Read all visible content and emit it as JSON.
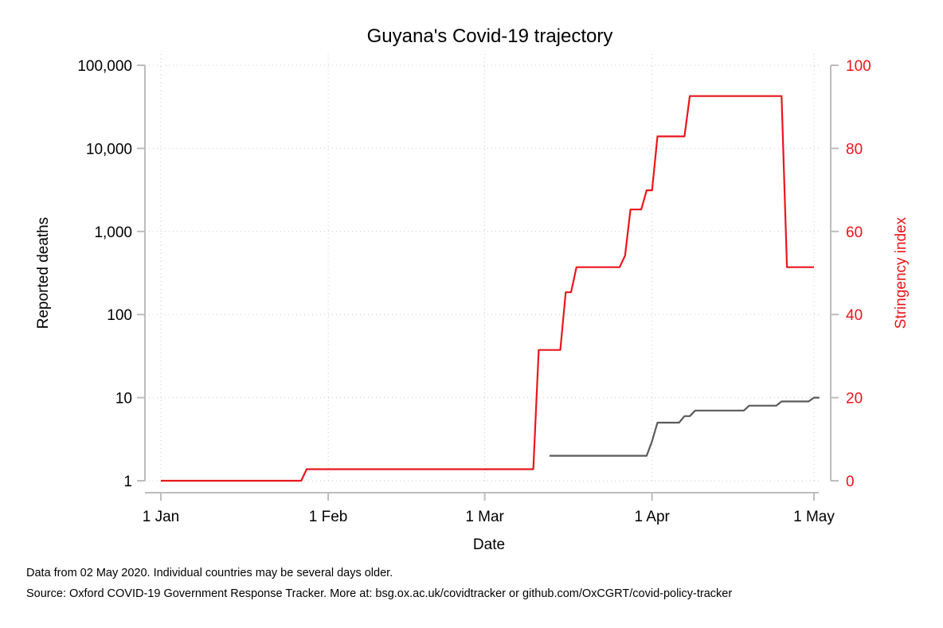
{
  "chart_data": {
    "type": "line",
    "title": "Guyana's Covid-19 trajectory",
    "xlabel": "Date",
    "ylabel_left": "Reported deaths",
    "ylabel_right": "Stringency index",
    "y_left_scale": "log",
    "y_left_ticks": [
      1,
      10,
      100,
      1000,
      10000,
      100000
    ],
    "y_left_tick_labels": [
      "1",
      "10",
      "100",
      "1,000",
      "10,000",
      "100,000"
    ],
    "y_right_ticks": [
      0,
      20,
      40,
      60,
      80,
      100
    ],
    "y_right_tick_labels": [
      "0",
      "20",
      "40",
      "60",
      "80",
      "100"
    ],
    "y_right_color": "#e8161c",
    "x_ticks": [
      "2020-01-01",
      "2020-02-01",
      "2020-03-01",
      "2020-04-01",
      "2020-05-01"
    ],
    "x_tick_labels": [
      "1 Jan",
      "1 Feb",
      "1 Mar",
      "1 Apr",
      "1 May"
    ],
    "xlim": [
      "2020-01-01",
      "2020-05-02"
    ],
    "grid": true,
    "series": [
      {
        "name": "Stringency index",
        "axis": "right",
        "color": "#e8161c",
        "points": [
          [
            "2020-01-01",
            0
          ],
          [
            "2020-01-27",
            0
          ],
          [
            "2020-01-28",
            2.78
          ],
          [
            "2020-03-10",
            2.78
          ],
          [
            "2020-03-11",
            31.48
          ],
          [
            "2020-03-15",
            31.48
          ],
          [
            "2020-03-16",
            45.37
          ],
          [
            "2020-03-17",
            45.37
          ],
          [
            "2020-03-18",
            51.39
          ],
          [
            "2020-03-26",
            51.39
          ],
          [
            "2020-03-27",
            54.17
          ],
          [
            "2020-03-28",
            65.28
          ],
          [
            "2020-03-30",
            65.28
          ],
          [
            "2020-03-31",
            69.91
          ],
          [
            "2020-04-01",
            69.91
          ],
          [
            "2020-04-02",
            82.87
          ],
          [
            "2020-04-07",
            82.87
          ],
          [
            "2020-04-08",
            92.59
          ],
          [
            "2020-04-25",
            92.59
          ],
          [
            "2020-04-26",
            51.39
          ],
          [
            "2020-05-01",
            51.39
          ]
        ]
      },
      {
        "name": "Reported deaths",
        "axis": "left",
        "color": "#5a5a5a",
        "points": [
          [
            "2020-03-13",
            2
          ],
          [
            "2020-03-31",
            2
          ],
          [
            "2020-04-01",
            3
          ],
          [
            "2020-04-02",
            5
          ],
          [
            "2020-04-06",
            5
          ],
          [
            "2020-04-07",
            6
          ],
          [
            "2020-04-08",
            6
          ],
          [
            "2020-04-09",
            7
          ],
          [
            "2020-04-18",
            7
          ],
          [
            "2020-04-19",
            8
          ],
          [
            "2020-04-24",
            8
          ],
          [
            "2020-04-25",
            9
          ],
          [
            "2020-04-30",
            9
          ],
          [
            "2020-05-01",
            10
          ],
          [
            "2020-05-02",
            10
          ]
        ]
      }
    ]
  },
  "notes": {
    "line1": "Data from 02 May 2020. Individual countries may be several days older.",
    "line2": "Source: Oxford COVID-19 Government Response Tracker. More at: bsg.ox.ac.uk/covidtracker or github.com/OxCGRT/covid-policy-tracker"
  }
}
